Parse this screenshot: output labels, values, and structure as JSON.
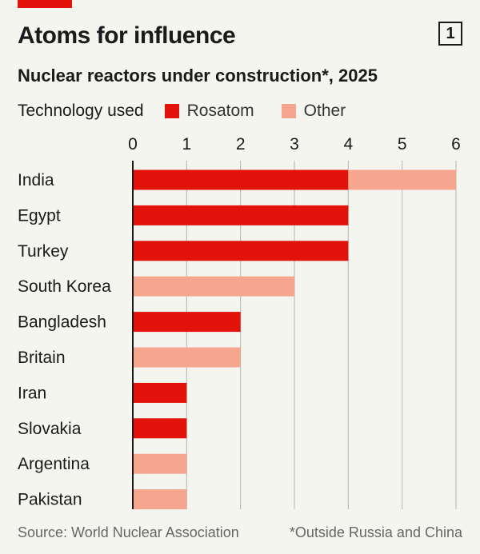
{
  "header": {
    "title": "Atoms for influence",
    "badge": "1",
    "subtitle": "Nuclear reactors under construction*, 2025"
  },
  "legend": {
    "title": "Technology used",
    "items": [
      {
        "label": "Rosatom",
        "color": "#e3120b"
      },
      {
        "label": "Other",
        "color": "#f6a68f"
      }
    ]
  },
  "footer": {
    "source": "Source: World Nuclear Association",
    "note": "*Outside Russia and China"
  },
  "colors": {
    "accent": "#e3120b",
    "rosatom": "#e3120b",
    "other": "#f6a68f",
    "gridline": "#b5b5b0",
    "axis": "#1a1a1a"
  },
  "chart_data": {
    "type": "bar",
    "orientation": "horizontal",
    "stacked": true,
    "categories": [
      "India",
      "Egypt",
      "Turkey",
      "South Korea",
      "Bangladesh",
      "Britain",
      "Iran",
      "Slovakia",
      "Argentina",
      "Pakistan"
    ],
    "series": [
      {
        "name": "Rosatom",
        "values": [
          4,
          4,
          4,
          0,
          2,
          0,
          1,
          1,
          0,
          0
        ]
      },
      {
        "name": "Other",
        "values": [
          2,
          0,
          0,
          3,
          0,
          2,
          0,
          0,
          1,
          1
        ]
      }
    ],
    "xlim": [
      0,
      6
    ],
    "xticks": [
      0,
      1,
      2,
      3,
      4,
      5,
      6
    ],
    "xaxis_position": "top",
    "grid": true,
    "legend_position": "top-left"
  }
}
